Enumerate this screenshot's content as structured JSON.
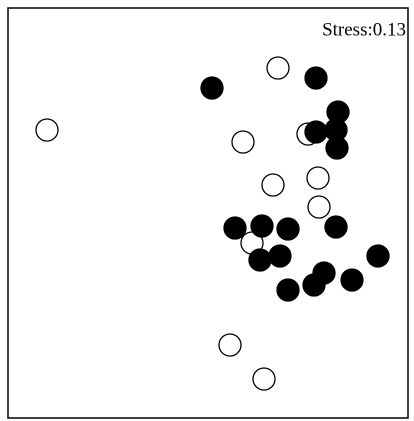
{
  "chart_data": {
    "type": "scatter",
    "annotation": "Stress:0.13",
    "xlim": [
      0,
      100
    ],
    "ylim": [
      0,
      100
    ],
    "series": [
      {
        "color": "#000000",
        "filled": false,
        "x": [
          67.5,
          58.75,
          75,
          9.75,
          66.25,
          77.5,
          77.75,
          61,
          55.5,
          64
        ],
        "values": [
          85,
          66.5,
          68.5,
          69.5,
          55.75,
          57.5,
          50.25,
          41.25,
          15.75,
          7.25
        ]
      },
      {
        "color": "#000000",
        "filled": true,
        "x": [
          77,
          51,
          82.5,
          77,
          82,
          82.25,
          56.75,
          63.5,
          70,
          82,
          92.5,
          63,
          68,
          79,
          76.5,
          70,
          86
        ],
        "values": [
          82.5,
          80,
          74,
          69,
          69.5,
          65,
          45,
          45.5,
          44.75,
          45.25,
          38,
          37,
          38,
          33.75,
          30.75,
          29.5,
          32
        ]
      }
    ]
  }
}
